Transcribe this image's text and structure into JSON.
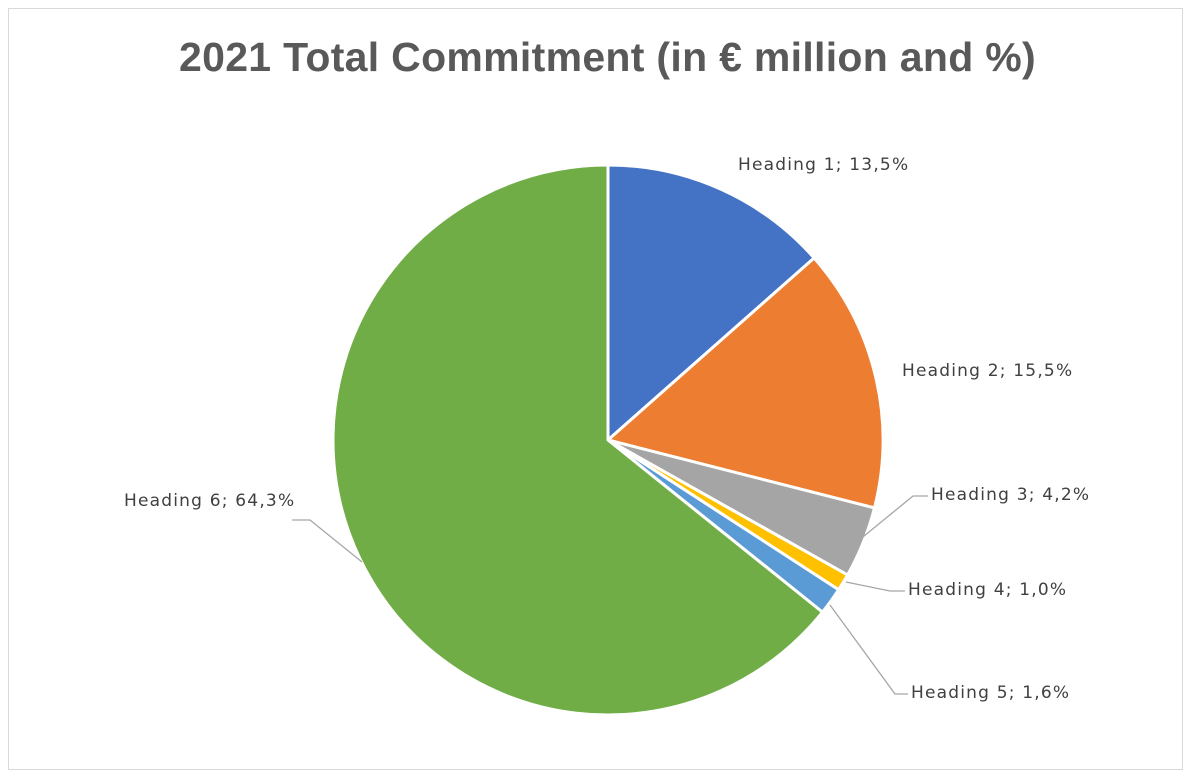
{
  "chart_data": {
    "type": "pie",
    "title": "2021 Total Commitment (in € million and %)",
    "slices": [
      {
        "name": "Heading 1",
        "value": 13.5,
        "label": "Heading 1; 13,5%",
        "color": "#4472C4"
      },
      {
        "name": "Heading 2",
        "value": 15.5,
        "label": "Heading 2; 15,5%",
        "color": "#ED7D31"
      },
      {
        "name": "Heading 3",
        "value": 4.2,
        "label": "Heading 3; 4,2%",
        "color": "#A5A5A5"
      },
      {
        "name": "Heading 4",
        "value": 1.0,
        "label": "Heading 4; 1,0%",
        "color": "#FFC000"
      },
      {
        "name": "Heading 5",
        "value": 1.6,
        "label": "Heading 5; 1,6%",
        "color": "#5B9BD5"
      },
      {
        "name": "Heading 6",
        "value": 64.3,
        "label": "Heading 6; 64,3%",
        "color": "#70AD47"
      }
    ],
    "start_angle": "12 o'clock",
    "direction": "clockwise",
    "legend": "none",
    "data_labels": "outside with leader lines"
  }
}
